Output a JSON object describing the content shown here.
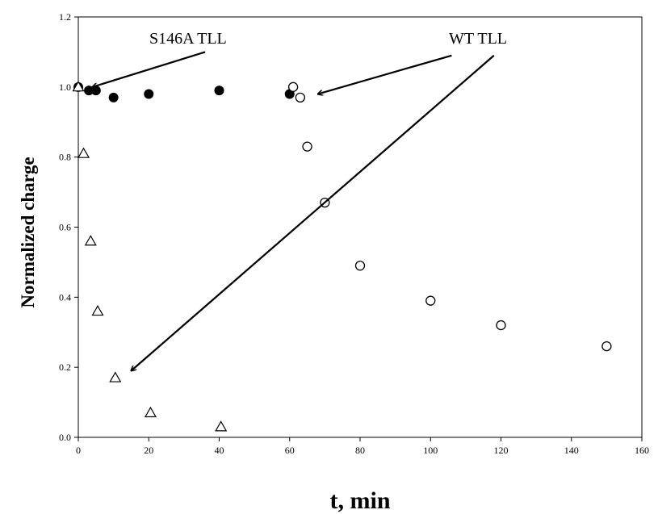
{
  "chart_data": {
    "type": "scatter",
    "xlabel": "t, min",
    "ylabel": "Normalized charge",
    "xlim": [
      0,
      160
    ],
    "ylim": [
      0.0,
      1.2
    ],
    "x_ticks": [
      "0",
      "20",
      "40",
      "60",
      "80",
      "100",
      "120",
      "140",
      "160"
    ],
    "y_ticks": [
      "0.0",
      "0.2",
      "0.4",
      "0.6",
      "0.8",
      "1.0",
      "1.2"
    ],
    "x_tick_values": [
      0,
      20,
      40,
      60,
      80,
      100,
      120,
      140,
      160
    ],
    "y_tick_values": [
      0.0,
      0.2,
      0.4,
      0.6,
      0.8,
      1.0,
      1.2
    ],
    "grid": false,
    "series": [
      {
        "marker": "filled-circle",
        "color": "#000000",
        "points": [
          [
            0,
            1.0
          ],
          [
            3,
            0.99
          ],
          [
            5,
            0.99
          ],
          [
            10,
            0.97
          ],
          [
            20,
            0.98
          ],
          [
            40,
            0.99
          ],
          [
            60,
            0.98
          ]
        ]
      },
      {
        "marker": "open-circle",
        "color": "#000000",
        "points": [
          [
            61,
            1.0
          ],
          [
            63,
            0.97
          ],
          [
            65,
            0.83
          ],
          [
            70,
            0.67
          ],
          [
            80,
            0.49
          ],
          [
            100,
            0.39
          ],
          [
            120,
            0.32
          ],
          [
            150,
            0.26
          ]
        ]
      },
      {
        "marker": "open-triangle",
        "color": "#000000",
        "points": [
          [
            0,
            1.0
          ],
          [
            1.5,
            0.81
          ],
          [
            3.5,
            0.56
          ],
          [
            5.5,
            0.36
          ],
          [
            10.5,
            0.17
          ],
          [
            20.5,
            0.07
          ],
          [
            40.5,
            0.03
          ]
        ]
      }
    ],
    "annotations": [
      {
        "text": "S146A TLL",
        "arrow_from": [
          36,
          1.1
        ],
        "arrow_to": [
          4,
          1.0
        ]
      },
      {
        "text": "WT TLL",
        "arrow_from": [
          106,
          1.09
        ],
        "arrow_to": [
          68,
          0.98
        ]
      },
      {
        "text": "",
        "arrow_from": [
          118,
          1.09
        ],
        "arrow_to": [
          15,
          0.19
        ]
      }
    ]
  }
}
